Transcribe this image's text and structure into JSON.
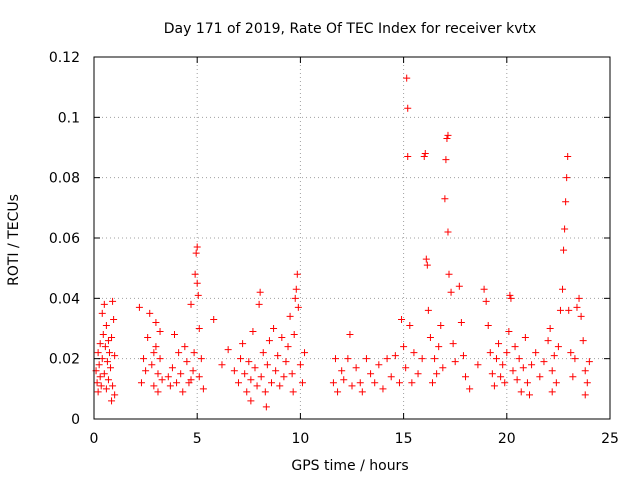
{
  "chart_data": {
    "type": "scatter",
    "title": "Day 171 of 2019, Rate Of TEC Index for receiver kvtx",
    "xlabel": "GPS time / hours",
    "ylabel": "ROTI / TECUs",
    "xlim": [
      0,
      25
    ],
    "ylim": [
      0,
      0.12
    ],
    "xticks": [
      0,
      5,
      10,
      15,
      20,
      25
    ],
    "xtick_labels": [
      "0",
      "5",
      "10",
      "15",
      "20",
      "25"
    ],
    "yticks": [
      0,
      0.02,
      0.04,
      0.06,
      0.08,
      0.1,
      0.12
    ],
    "ytick_labels": [
      "0",
      "0.02",
      "0.04",
      "0.06",
      "0.08",
      "0.1",
      "0.12"
    ],
    "grid": true,
    "marker": "+",
    "color": "#ff0000",
    "series": [
      {
        "name": "ROTI",
        "points": [
          [
            0.1,
            0.016
          ],
          [
            0.15,
            0.012
          ],
          [
            0.2,
            0.022
          ],
          [
            0.2,
            0.009
          ],
          [
            0.25,
            0.018
          ],
          [
            0.3,
            0.014
          ],
          [
            0.3,
            0.025
          ],
          [
            0.35,
            0.011
          ],
          [
            0.4,
            0.02
          ],
          [
            0.4,
            0.035
          ],
          [
            0.45,
            0.028
          ],
          [
            0.5,
            0.038
          ],
          [
            0.5,
            0.015
          ],
          [
            0.55,
            0.024
          ],
          [
            0.6,
            0.01
          ],
          [
            0.6,
            0.031
          ],
          [
            0.65,
            0.019
          ],
          [
            0.7,
            0.013
          ],
          [
            0.75,
            0.022
          ],
          [
            0.8,
            0.017
          ],
          [
            0.85,
            0.027
          ],
          [
            0.9,
            0.039
          ],
          [
            0.9,
            0.011
          ],
          [
            0.95,
            0.033
          ],
          [
            1.0,
            0.021
          ],
          [
            1.0,
            0.008
          ],
          [
            0.85,
            0.006
          ],
          [
            0.7,
            0.026
          ],
          [
            2.2,
            0.037
          ],
          [
            2.3,
            0.012
          ],
          [
            2.4,
            0.02
          ],
          [
            2.5,
            0.016
          ],
          [
            2.6,
            0.027
          ],
          [
            2.7,
            0.035
          ],
          [
            2.8,
            0.018
          ],
          [
            2.9,
            0.011
          ],
          [
            3.0,
            0.024
          ],
          [
            3.0,
            0.032
          ],
          [
            3.1,
            0.015
          ],
          [
            3.2,
            0.029
          ],
          [
            3.3,
            0.013
          ],
          [
            3.2,
            0.02
          ],
          [
            2.9,
            0.022
          ],
          [
            3.1,
            0.009
          ],
          [
            3.6,
            0.014
          ],
          [
            3.7,
            0.011
          ],
          [
            3.8,
            0.017
          ],
          [
            3.9,
            0.028
          ],
          [
            4.0,
            0.012
          ],
          [
            4.1,
            0.022
          ],
          [
            4.2,
            0.015
          ],
          [
            4.3,
            0.009
          ],
          [
            4.5,
            0.019
          ],
          [
            4.6,
            0.012
          ],
          [
            4.7,
            0.038
          ],
          [
            4.8,
            0.016
          ],
          [
            4.85,
            0.022
          ],
          [
            4.9,
            0.048
          ],
          [
            4.95,
            0.055
          ],
          [
            5.0,
            0.045
          ],
          [
            5.0,
            0.057
          ],
          [
            5.05,
            0.041
          ],
          [
            5.1,
            0.03
          ],
          [
            5.1,
            0.014
          ],
          [
            5.2,
            0.02
          ],
          [
            5.3,
            0.01
          ],
          [
            4.4,
            0.024
          ],
          [
            4.7,
            0.013
          ],
          [
            5.8,
            0.033
          ],
          [
            6.2,
            0.018
          ],
          [
            6.5,
            0.023
          ],
          [
            6.8,
            0.016
          ],
          [
            7.0,
            0.012
          ],
          [
            7.1,
            0.02
          ],
          [
            7.2,
            0.025
          ],
          [
            7.3,
            0.015
          ],
          [
            7.4,
            0.009
          ],
          [
            7.5,
            0.019
          ],
          [
            7.6,
            0.013
          ],
          [
            7.7,
            0.029
          ],
          [
            7.8,
            0.017
          ],
          [
            7.9,
            0.011
          ],
          [
            8.0,
            0.038
          ],
          [
            8.05,
            0.042
          ],
          [
            8.1,
            0.014
          ],
          [
            8.2,
            0.022
          ],
          [
            8.3,
            0.009
          ],
          [
            8.4,
            0.018
          ],
          [
            8.5,
            0.026
          ],
          [
            8.6,
            0.012
          ],
          [
            8.7,
            0.03
          ],
          [
            8.8,
            0.016
          ],
          [
            8.9,
            0.021
          ],
          [
            9.0,
            0.011
          ],
          [
            9.1,
            0.027
          ],
          [
            9.2,
            0.014
          ],
          [
            9.3,
            0.019
          ],
          [
            9.4,
            0.024
          ],
          [
            9.5,
            0.034
          ],
          [
            9.6,
            0.015
          ],
          [
            9.7,
            0.028
          ],
          [
            9.75,
            0.04
          ],
          [
            9.8,
            0.043
          ],
          [
            9.85,
            0.048
          ],
          [
            9.9,
            0.037
          ],
          [
            10.0,
            0.018
          ],
          [
            10.1,
            0.012
          ],
          [
            10.2,
            0.022
          ],
          [
            8.35,
            0.004
          ],
          [
            7.6,
            0.006
          ],
          [
            9.65,
            0.009
          ],
          [
            11.6,
            0.012
          ],
          [
            11.7,
            0.02
          ],
          [
            11.8,
            0.009
          ],
          [
            12.0,
            0.016
          ],
          [
            12.1,
            0.013
          ],
          [
            12.3,
            0.02
          ],
          [
            12.4,
            0.028
          ],
          [
            12.5,
            0.011
          ],
          [
            12.7,
            0.017
          ],
          [
            12.9,
            0.012
          ],
          [
            13.0,
            0.009
          ],
          [
            13.2,
            0.02
          ],
          [
            13.4,
            0.015
          ],
          [
            13.6,
            0.012
          ],
          [
            13.8,
            0.018
          ],
          [
            14.0,
            0.01
          ],
          [
            14.2,
            0.02
          ],
          [
            14.4,
            0.014
          ],
          [
            14.6,
            0.021
          ],
          [
            14.8,
            0.012
          ],
          [
            14.9,
            0.033
          ],
          [
            15.0,
            0.024
          ],
          [
            15.1,
            0.017
          ],
          [
            15.15,
            0.113
          ],
          [
            15.2,
            0.103
          ],
          [
            15.2,
            0.087
          ],
          [
            15.3,
            0.031
          ],
          [
            15.4,
            0.012
          ],
          [
            15.5,
            0.022
          ],
          [
            15.7,
            0.015
          ],
          [
            15.9,
            0.02
          ],
          [
            16.0,
            0.087
          ],
          [
            16.05,
            0.088
          ],
          [
            16.1,
            0.053
          ],
          [
            16.15,
            0.051
          ],
          [
            16.2,
            0.036
          ],
          [
            16.3,
            0.027
          ],
          [
            16.4,
            0.012
          ],
          [
            16.5,
            0.02
          ],
          [
            16.6,
            0.015
          ],
          [
            16.7,
            0.024
          ],
          [
            16.8,
            0.031
          ],
          [
            16.9,
            0.017
          ],
          [
            17.0,
            0.073
          ],
          [
            17.05,
            0.086
          ],
          [
            17.1,
            0.093
          ],
          [
            17.15,
            0.094
          ],
          [
            17.15,
            0.062
          ],
          [
            17.2,
            0.048
          ],
          [
            17.3,
            0.042
          ],
          [
            17.4,
            0.025
          ],
          [
            17.5,
            0.019
          ],
          [
            17.7,
            0.044
          ],
          [
            17.8,
            0.032
          ],
          [
            17.9,
            0.021
          ],
          [
            18.0,
            0.014
          ],
          [
            18.2,
            0.01
          ],
          [
            18.6,
            0.018
          ],
          [
            18.9,
            0.043
          ],
          [
            19.0,
            0.039
          ],
          [
            19.1,
            0.031
          ],
          [
            19.2,
            0.022
          ],
          [
            19.3,
            0.015
          ],
          [
            19.4,
            0.011
          ],
          [
            19.5,
            0.02
          ],
          [
            19.6,
            0.025
          ],
          [
            19.7,
            0.014
          ],
          [
            19.8,
            0.018
          ],
          [
            19.9,
            0.012
          ],
          [
            20.0,
            0.022
          ],
          [
            20.1,
            0.029
          ],
          [
            20.15,
            0.041
          ],
          [
            20.2,
            0.04
          ],
          [
            20.3,
            0.016
          ],
          [
            20.4,
            0.024
          ],
          [
            20.5,
            0.013
          ],
          [
            20.6,
            0.02
          ],
          [
            20.7,
            0.009
          ],
          [
            20.8,
            0.017
          ],
          [
            20.9,
            0.027
          ],
          [
            21.0,
            0.012
          ],
          [
            21.2,
            0.018
          ],
          [
            21.4,
            0.022
          ],
          [
            21.6,
            0.014
          ],
          [
            21.8,
            0.019
          ],
          [
            22.0,
            0.026
          ],
          [
            22.1,
            0.03
          ],
          [
            22.2,
            0.016
          ],
          [
            22.3,
            0.021
          ],
          [
            22.4,
            0.012
          ],
          [
            22.5,
            0.024
          ],
          [
            22.6,
            0.036
          ],
          [
            22.7,
            0.043
          ],
          [
            22.75,
            0.056
          ],
          [
            22.8,
            0.063
          ],
          [
            22.85,
            0.072
          ],
          [
            22.9,
            0.08
          ],
          [
            22.95,
            0.087
          ],
          [
            23.0,
            0.036
          ],
          [
            23.1,
            0.022
          ],
          [
            23.2,
            0.014
          ],
          [
            23.3,
            0.02
          ],
          [
            23.4,
            0.037
          ],
          [
            23.5,
            0.04
          ],
          [
            23.6,
            0.034
          ],
          [
            23.7,
            0.026
          ],
          [
            23.8,
            0.016
          ],
          [
            23.9,
            0.012
          ],
          [
            24.0,
            0.019
          ],
          [
            21.1,
            0.008
          ],
          [
            22.2,
            0.009
          ],
          [
            23.8,
            0.008
          ]
        ]
      }
    ]
  }
}
